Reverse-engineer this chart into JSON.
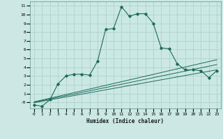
{
  "xlabel": "Humidex (Indice chaleur)",
  "background_color": "#cce8e5",
  "grid_color": "#b0d0ce",
  "line_color": "#1a6b5a",
  "xlim": [
    -0.5,
    23.5
  ],
  "ylim": [
    -0.7,
    11.5
  ],
  "xticks": [
    0,
    1,
    2,
    3,
    4,
    5,
    6,
    7,
    8,
    9,
    10,
    11,
    12,
    13,
    14,
    15,
    16,
    17,
    18,
    19,
    20,
    21,
    22,
    23
  ],
  "yticks": [
    0,
    1,
    2,
    3,
    4,
    5,
    6,
    7,
    8,
    9,
    10,
    11
  ],
  "main_x": [
    0,
    1,
    2,
    3,
    4,
    5,
    6,
    7,
    8,
    9,
    10,
    11,
    12,
    13,
    14,
    15,
    16,
    17,
    18,
    19,
    20,
    21,
    22,
    23
  ],
  "main_y": [
    -0.3,
    -0.45,
    0.3,
    2.1,
    3.0,
    3.2,
    3.2,
    3.1,
    4.7,
    8.3,
    8.4,
    10.9,
    9.8,
    10.1,
    10.1,
    9.0,
    6.2,
    6.1,
    4.4,
    3.7,
    3.7,
    3.6,
    2.8,
    3.6
  ],
  "line1_x": [
    0,
    23
  ],
  "line1_y": [
    0.05,
    4.85
  ],
  "line2_x": [
    0,
    23
  ],
  "line2_y": [
    0.0,
    4.3
  ],
  "line3_x": [
    0,
    23
  ],
  "line3_y": [
    -0.05,
    3.7
  ]
}
